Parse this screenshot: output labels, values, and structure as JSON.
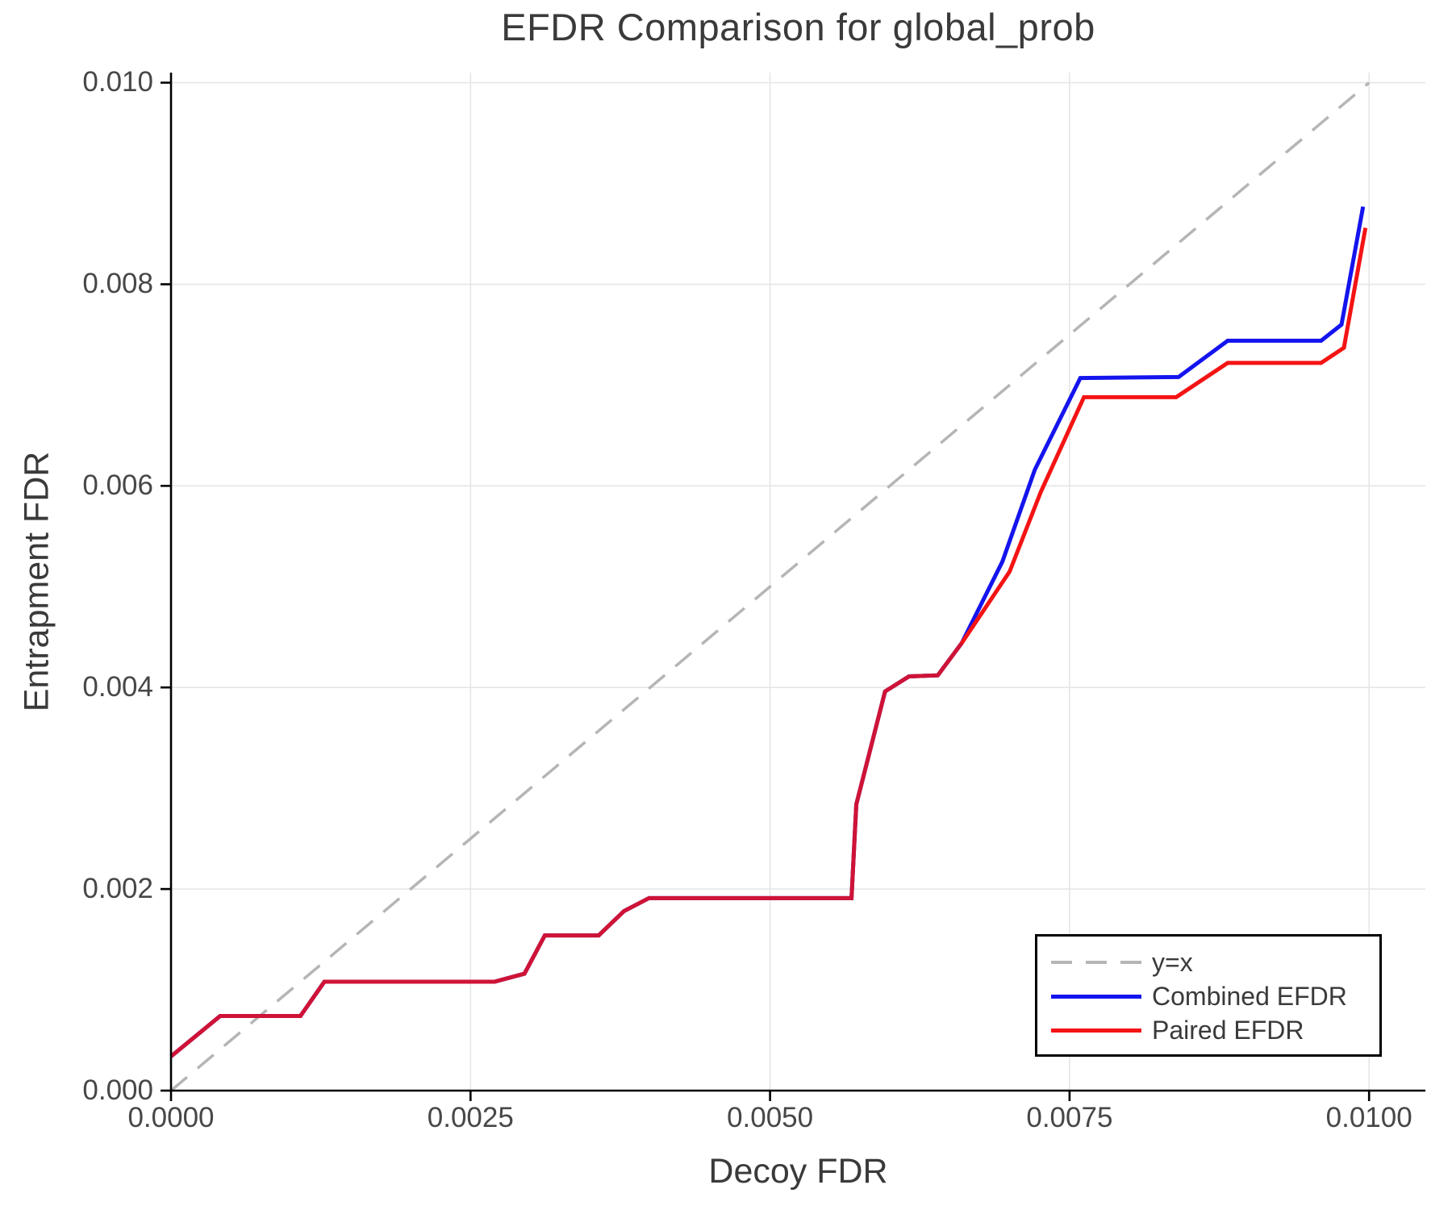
{
  "chart_data": {
    "type": "line",
    "title": "EFDR Comparison for global_prob",
    "xlabel": "Decoy FDR",
    "ylabel": "Entrapment FDR",
    "xlim": [
      0,
      0.01047
    ],
    "ylim": [
      0,
      0.0101
    ],
    "grid": true,
    "grid_color": "#e6e6e6",
    "spine_color": "#000000",
    "background": "#ffffff",
    "legend": {
      "position": "lower right",
      "border_color": "#000000",
      "background": "#ffffff"
    },
    "xticks": {
      "values": [
        0.0,
        0.0025,
        0.005,
        0.0075,
        0.01
      ],
      "labels": [
        "0.0000",
        "0.0025",
        "0.0050",
        "0.0075",
        "0.0100"
      ]
    },
    "yticks": {
      "values": [
        0.0,
        0.002,
        0.004,
        0.006,
        0.008,
        0.01
      ],
      "labels": [
        "0.000",
        "0.002",
        "0.004",
        "0.006",
        "0.008",
        "0.010"
      ]
    },
    "series": [
      {
        "name": "y=x",
        "color": "#b5b5b5",
        "style": "dashed",
        "width": 3.5,
        "points": [
          [
            0,
            0
          ],
          [
            0.01,
            0.01
          ]
        ]
      },
      {
        "name": "Combined EFDR",
        "color": "#1414ee",
        "style": "solid",
        "width": 5,
        "points": [
          [
            0.0,
            0.00034
          ],
          [
            0.00041,
            0.00074
          ],
          [
            0.00108,
            0.00074
          ],
          [
            0.00128,
            0.00108
          ],
          [
            0.0027,
            0.00108
          ],
          [
            0.00295,
            0.00116
          ],
          [
            0.00312,
            0.00154
          ],
          [
            0.00357,
            0.00154
          ],
          [
            0.00378,
            0.00178
          ],
          [
            0.00399,
            0.00191
          ],
          [
            0.00568,
            0.00191
          ],
          [
            0.00572,
            0.00284
          ],
          [
            0.00596,
            0.00396
          ],
          [
            0.00616,
            0.00411
          ],
          [
            0.0064,
            0.00412
          ],
          [
            0.0066,
            0.00444
          ],
          [
            0.00694,
            0.00525
          ],
          [
            0.00721,
            0.00616
          ],
          [
            0.00759,
            0.00707
          ],
          [
            0.00841,
            0.00708
          ],
          [
            0.00882,
            0.00744
          ],
          [
            0.0096,
            0.00744
          ],
          [
            0.00977,
            0.0076
          ],
          [
            0.00995,
            0.00877
          ]
        ]
      },
      {
        "name": "Paired EFDR",
        "color": "#f41414",
        "style": "solid",
        "width": 5,
        "points": [
          [
            0.0,
            0.00034
          ],
          [
            0.00041,
            0.00074
          ],
          [
            0.00108,
            0.00074
          ],
          [
            0.00128,
            0.00108
          ],
          [
            0.0027,
            0.00108
          ],
          [
            0.00295,
            0.00116
          ],
          [
            0.00312,
            0.00154
          ],
          [
            0.00357,
            0.00154
          ],
          [
            0.00378,
            0.00178
          ],
          [
            0.00399,
            0.00191
          ],
          [
            0.00568,
            0.00191
          ],
          [
            0.00572,
            0.00284
          ],
          [
            0.00596,
            0.00396
          ],
          [
            0.00616,
            0.00411
          ],
          [
            0.0064,
            0.00412
          ],
          [
            0.0066,
            0.00444
          ],
          [
            0.007,
            0.00515
          ],
          [
            0.00726,
            0.00594
          ],
          [
            0.00762,
            0.00688
          ],
          [
            0.00839,
            0.00688
          ],
          [
            0.00882,
            0.00722
          ],
          [
            0.0096,
            0.00722
          ],
          [
            0.00979,
            0.00737
          ],
          [
            0.00997,
            0.00856
          ]
        ]
      }
    ]
  }
}
